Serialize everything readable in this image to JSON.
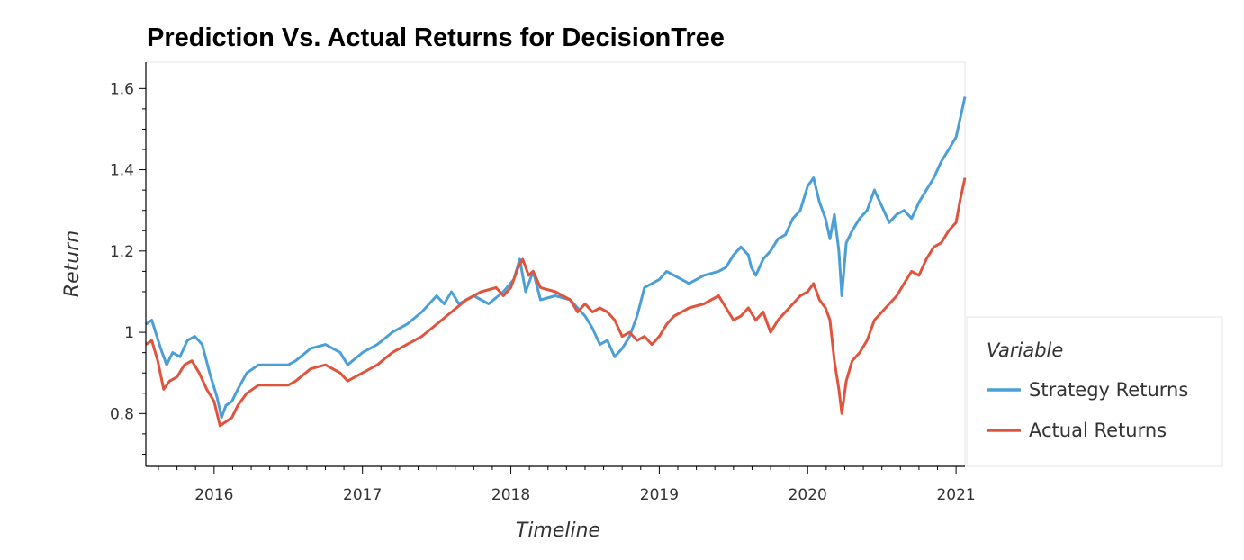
{
  "chart_data": {
    "type": "line",
    "title": "Prediction Vs. Actual Returns for DecisionTree",
    "xlabel": "Timeline",
    "ylabel": "Return",
    "xlim": [
      2015.54,
      2021.06
    ],
    "ylim": [
      0.67,
      1.665
    ],
    "x_ticks": [
      "2016",
      "2017",
      "2018",
      "2019",
      "2020",
      "2021"
    ],
    "y_ticks": [
      "0.8",
      "1",
      "1.2",
      "1.4",
      "1.6"
    ],
    "grid": false,
    "legend": {
      "title": "Variable",
      "placement": "right"
    },
    "series": [
      {
        "name": "Strategy Returns",
        "color": "#4c9fd6",
        "points": [
          [
            2015.54,
            1.02
          ],
          [
            2015.58,
            1.03
          ],
          [
            2015.64,
            0.96
          ],
          [
            2015.68,
            0.92
          ],
          [
            2015.72,
            0.95
          ],
          [
            2015.77,
            0.94
          ],
          [
            2015.82,
            0.98
          ],
          [
            2015.87,
            0.99
          ],
          [
            2015.92,
            0.97
          ],
          [
            2015.97,
            0.9
          ],
          [
            2016.02,
            0.84
          ],
          [
            2016.05,
            0.79
          ],
          [
            2016.08,
            0.82
          ],
          [
            2016.12,
            0.83
          ],
          [
            2016.16,
            0.86
          ],
          [
            2016.22,
            0.9
          ],
          [
            2016.3,
            0.92
          ],
          [
            2016.5,
            0.92
          ],
          [
            2016.55,
            0.93
          ],
          [
            2016.65,
            0.96
          ],
          [
            2016.75,
            0.97
          ],
          [
            2016.85,
            0.95
          ],
          [
            2016.9,
            0.92
          ],
          [
            2017.0,
            0.95
          ],
          [
            2017.1,
            0.97
          ],
          [
            2017.2,
            1.0
          ],
          [
            2017.3,
            1.02
          ],
          [
            2017.4,
            1.05
          ],
          [
            2017.5,
            1.09
          ],
          [
            2017.55,
            1.07
          ],
          [
            2017.6,
            1.1
          ],
          [
            2017.65,
            1.07
          ],
          [
            2017.75,
            1.09
          ],
          [
            2017.85,
            1.07
          ],
          [
            2017.95,
            1.1
          ],
          [
            2018.02,
            1.13
          ],
          [
            2018.06,
            1.18
          ],
          [
            2018.1,
            1.1
          ],
          [
            2018.15,
            1.15
          ],
          [
            2018.2,
            1.08
          ],
          [
            2018.3,
            1.09
          ],
          [
            2018.4,
            1.08
          ],
          [
            2018.45,
            1.06
          ],
          [
            2018.5,
            1.04
          ],
          [
            2018.55,
            1.01
          ],
          [
            2018.6,
            0.97
          ],
          [
            2018.65,
            0.98
          ],
          [
            2018.7,
            0.94
          ],
          [
            2018.75,
            0.96
          ],
          [
            2018.8,
            0.99
          ],
          [
            2018.85,
            1.04
          ],
          [
            2018.9,
            1.11
          ],
          [
            2018.95,
            1.12
          ],
          [
            2019.0,
            1.13
          ],
          [
            2019.05,
            1.15
          ],
          [
            2019.1,
            1.14
          ],
          [
            2019.2,
            1.12
          ],
          [
            2019.3,
            1.14
          ],
          [
            2019.4,
            1.15
          ],
          [
            2019.45,
            1.16
          ],
          [
            2019.5,
            1.19
          ],
          [
            2019.55,
            1.21
          ],
          [
            2019.6,
            1.19
          ],
          [
            2019.62,
            1.16
          ],
          [
            2019.65,
            1.14
          ],
          [
            2019.7,
            1.18
          ],
          [
            2019.75,
            1.2
          ],
          [
            2019.8,
            1.23
          ],
          [
            2019.85,
            1.24
          ],
          [
            2019.9,
            1.28
          ],
          [
            2019.95,
            1.3
          ],
          [
            2020.0,
            1.36
          ],
          [
            2020.04,
            1.38
          ],
          [
            2020.08,
            1.32
          ],
          [
            2020.12,
            1.28
          ],
          [
            2020.15,
            1.23
          ],
          [
            2020.18,
            1.29
          ],
          [
            2020.21,
            1.2
          ],
          [
            2020.23,
            1.09
          ],
          [
            2020.26,
            1.22
          ],
          [
            2020.3,
            1.25
          ],
          [
            2020.35,
            1.28
          ],
          [
            2020.4,
            1.3
          ],
          [
            2020.45,
            1.35
          ],
          [
            2020.5,
            1.31
          ],
          [
            2020.55,
            1.27
          ],
          [
            2020.6,
            1.29
          ],
          [
            2020.65,
            1.3
          ],
          [
            2020.7,
            1.28
          ],
          [
            2020.75,
            1.32
          ],
          [
            2020.8,
            1.35
          ],
          [
            2020.85,
            1.38
          ],
          [
            2020.9,
            1.42
          ],
          [
            2020.95,
            1.45
          ],
          [
            2021.0,
            1.48
          ],
          [
            2021.03,
            1.53
          ],
          [
            2021.06,
            1.58
          ]
        ]
      },
      {
        "name": "Actual Returns",
        "color": "#e0533c",
        "points": [
          [
            2015.54,
            0.97
          ],
          [
            2015.58,
            0.98
          ],
          [
            2015.62,
            0.93
          ],
          [
            2015.66,
            0.86
          ],
          [
            2015.7,
            0.88
          ],
          [
            2015.75,
            0.89
          ],
          [
            2015.8,
            0.92
          ],
          [
            2015.85,
            0.93
          ],
          [
            2015.9,
            0.9
          ],
          [
            2015.95,
            0.86
          ],
          [
            2016.0,
            0.83
          ],
          [
            2016.04,
            0.77
          ],
          [
            2016.08,
            0.78
          ],
          [
            2016.12,
            0.79
          ],
          [
            2016.16,
            0.82
          ],
          [
            2016.22,
            0.85
          ],
          [
            2016.3,
            0.87
          ],
          [
            2016.5,
            0.87
          ],
          [
            2016.55,
            0.88
          ],
          [
            2016.65,
            0.91
          ],
          [
            2016.75,
            0.92
          ],
          [
            2016.85,
            0.9
          ],
          [
            2016.9,
            0.88
          ],
          [
            2017.0,
            0.9
          ],
          [
            2017.1,
            0.92
          ],
          [
            2017.2,
            0.95
          ],
          [
            2017.3,
            0.97
          ],
          [
            2017.4,
            0.99
          ],
          [
            2017.5,
            1.02
          ],
          [
            2017.6,
            1.05
          ],
          [
            2017.7,
            1.08
          ],
          [
            2017.8,
            1.1
          ],
          [
            2017.9,
            1.11
          ],
          [
            2017.95,
            1.09
          ],
          [
            2018.0,
            1.11
          ],
          [
            2018.05,
            1.16
          ],
          [
            2018.08,
            1.18
          ],
          [
            2018.12,
            1.14
          ],
          [
            2018.15,
            1.15
          ],
          [
            2018.2,
            1.11
          ],
          [
            2018.3,
            1.1
          ],
          [
            2018.4,
            1.08
          ],
          [
            2018.45,
            1.05
          ],
          [
            2018.5,
            1.07
          ],
          [
            2018.55,
            1.05
          ],
          [
            2018.6,
            1.06
          ],
          [
            2018.65,
            1.05
          ],
          [
            2018.7,
            1.03
          ],
          [
            2018.75,
            0.99
          ],
          [
            2018.8,
            1.0
          ],
          [
            2018.85,
            0.98
          ],
          [
            2018.9,
            0.99
          ],
          [
            2018.95,
            0.97
          ],
          [
            2019.0,
            0.99
          ],
          [
            2019.05,
            1.02
          ],
          [
            2019.1,
            1.04
          ],
          [
            2019.2,
            1.06
          ],
          [
            2019.3,
            1.07
          ],
          [
            2019.35,
            1.08
          ],
          [
            2019.4,
            1.09
          ],
          [
            2019.45,
            1.06
          ],
          [
            2019.5,
            1.03
          ],
          [
            2019.55,
            1.04
          ],
          [
            2019.6,
            1.06
          ],
          [
            2019.65,
            1.03
          ],
          [
            2019.7,
            1.05
          ],
          [
            2019.75,
            1.0
          ],
          [
            2019.8,
            1.03
          ],
          [
            2019.85,
            1.05
          ],
          [
            2019.9,
            1.07
          ],
          [
            2019.95,
            1.09
          ],
          [
            2020.0,
            1.1
          ],
          [
            2020.04,
            1.12
          ],
          [
            2020.08,
            1.08
          ],
          [
            2020.12,
            1.06
          ],
          [
            2020.15,
            1.03
          ],
          [
            2020.18,
            0.93
          ],
          [
            2020.21,
            0.86
          ],
          [
            2020.23,
            0.8
          ],
          [
            2020.26,
            0.88
          ],
          [
            2020.3,
            0.93
          ],
          [
            2020.35,
            0.95
          ],
          [
            2020.4,
            0.98
          ],
          [
            2020.45,
            1.03
          ],
          [
            2020.5,
            1.05
          ],
          [
            2020.55,
            1.07
          ],
          [
            2020.6,
            1.09
          ],
          [
            2020.65,
            1.12
          ],
          [
            2020.7,
            1.15
          ],
          [
            2020.75,
            1.14
          ],
          [
            2020.8,
            1.18
          ],
          [
            2020.85,
            1.21
          ],
          [
            2020.9,
            1.22
          ],
          [
            2020.95,
            1.25
          ],
          [
            2021.0,
            1.27
          ],
          [
            2021.03,
            1.33
          ],
          [
            2021.06,
            1.38
          ]
        ]
      }
    ]
  }
}
